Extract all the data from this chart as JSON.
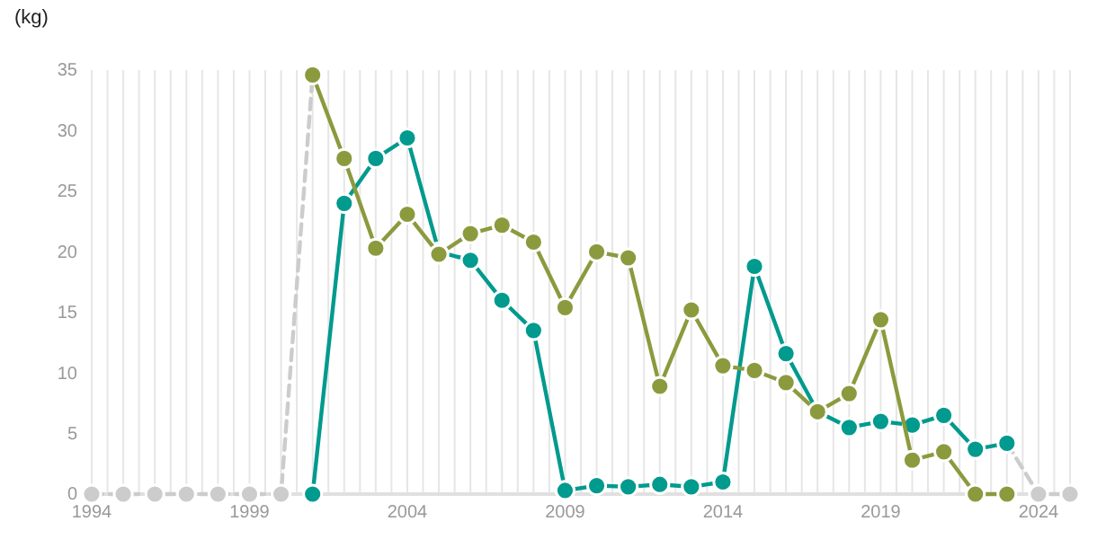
{
  "chart_data": {
    "type": "line",
    "ylabel": "(kg)",
    "grid": "x",
    "marker": "circle",
    "xlim": [
      1994,
      2025
    ],
    "ylim": [
      0,
      35
    ],
    "yticks": [
      0,
      5,
      10,
      15,
      20,
      25,
      30,
      35
    ],
    "xticks": [
      1994,
      {
        "value": 1994.5,
        "label": null
      },
      {
        "value": 1995,
        "label": null
      },
      {
        "value": 1995.5,
        "label": null
      },
      {
        "value": 1996,
        "label": null
      },
      {
        "value": 1996.5,
        "label": null
      },
      {
        "value": 1997,
        "label": null
      },
      {
        "value": 1997.5,
        "label": null
      },
      {
        "value": 1998,
        "label": null
      },
      {
        "value": 1998.5,
        "label": null
      },
      1999,
      {
        "value": 1999.5,
        "label": null
      },
      {
        "value": 2000,
        "label": null
      },
      {
        "value": 2000.5,
        "label": null
      },
      {
        "value": 2001,
        "label": null
      },
      {
        "value": 2001.5,
        "label": null
      },
      {
        "value": 2002,
        "label": null
      },
      {
        "value": 2002.5,
        "label": null
      },
      {
        "value": 2003,
        "label": null
      },
      {
        "value": 2003.5,
        "label": null
      },
      2004,
      {
        "value": 2004.5,
        "label": null
      },
      {
        "value": 2005,
        "label": null
      },
      {
        "value": 2005.5,
        "label": null
      },
      {
        "value": 2006,
        "label": null
      },
      {
        "value": 2006.5,
        "label": null
      },
      {
        "value": 2007,
        "label": null
      },
      {
        "value": 2007.5,
        "label": null
      },
      {
        "value": 2008,
        "label": null
      },
      {
        "value": 2008.5,
        "label": null
      },
      2009,
      {
        "value": 2009.5,
        "label": null
      },
      {
        "value": 2010,
        "label": null
      },
      {
        "value": 2010.5,
        "label": null
      },
      {
        "value": 2011,
        "label": null
      },
      {
        "value": 2011.5,
        "label": null
      },
      {
        "value": 2012,
        "label": null
      },
      {
        "value": 2012.5,
        "label": null
      },
      {
        "value": 2013,
        "label": null
      },
      {
        "value": 2013.5,
        "label": null
      },
      2014,
      {
        "value": 2014.5,
        "label": null
      },
      {
        "value": 2015,
        "label": null
      },
      {
        "value": 2015.5,
        "label": null
      },
      {
        "value": 2016,
        "label": null
      },
      {
        "value": 2016.5,
        "label": null
      },
      {
        "value": 2017,
        "label": null
      },
      {
        "value": 2017.5,
        "label": null
      },
      {
        "value": 2018,
        "label": null
      },
      {
        "value": 2018.5,
        "label": null
      },
      2019,
      {
        "value": 2019.5,
        "label": null
      },
      {
        "value": 2020,
        "label": null
      },
      {
        "value": 2020.5,
        "label": null
      },
      {
        "value": 2021,
        "label": null
      },
      {
        "value": 2021.5,
        "label": null
      },
      {
        "value": 2022,
        "label": null
      },
      {
        "value": 2022.5,
        "label": null
      },
      {
        "value": 2023,
        "label": null
      },
      {
        "value": 2023.5,
        "label": null
      },
      2024,
      {
        "value": 2024.5,
        "label": null
      },
      {
        "value": 2025,
        "label": null
      }
    ],
    "series": [
      {
        "color": "#cccccc",
        "line_style": "dashed",
        "x": [
          1994,
          1995,
          1996,
          1997,
          1998,
          1999,
          2000,
          2001
        ],
        "values": [
          0,
          0,
          0,
          0,
          0,
          0,
          0,
          34.6
        ]
      },
      {
        "color": "#cccccc",
        "line_style": "dashed",
        "x": [
          2023,
          2024,
          2025
        ],
        "values": [
          4.2,
          0,
          0
        ]
      },
      {
        "color": "#009a8e",
        "line_style": "solid",
        "x": [
          2001,
          2002,
          2003,
          2004,
          2005,
          2006,
          2007,
          2008,
          2009,
          2010,
          2011,
          2012,
          2013,
          2014,
          2015,
          2016,
          2017,
          2018,
          2019,
          2020,
          2021,
          2022,
          2023
        ],
        "values": [
          0,
          24,
          27.7,
          29.4,
          20,
          19.3,
          16,
          13.5,
          0.3,
          0.7,
          0.6,
          0.8,
          0.6,
          1,
          18.8,
          11.6,
          6.8,
          5.5,
          6,
          5.7,
          6.5,
          3.7,
          4.2
        ]
      },
      {
        "color": "#8c9a3e",
        "line_style": "solid",
        "x": [
          2001,
          2002,
          2003,
          2004,
          2005,
          2006,
          2007,
          2008,
          2009,
          2010,
          2011,
          2012,
          2013,
          2014,
          2015,
          2016,
          2017,
          2018,
          2019,
          2020,
          2021,
          2022,
          2023
        ],
        "values": [
          34.6,
          27.7,
          20.3,
          23.1,
          19.8,
          21.5,
          22.2,
          20.8,
          15.4,
          20,
          19.5,
          8.9,
          15.2,
          10.6,
          10.2,
          9.2,
          6.8,
          8.3,
          14.4,
          2.8,
          3.5,
          0,
          0
        ]
      }
    ]
  }
}
